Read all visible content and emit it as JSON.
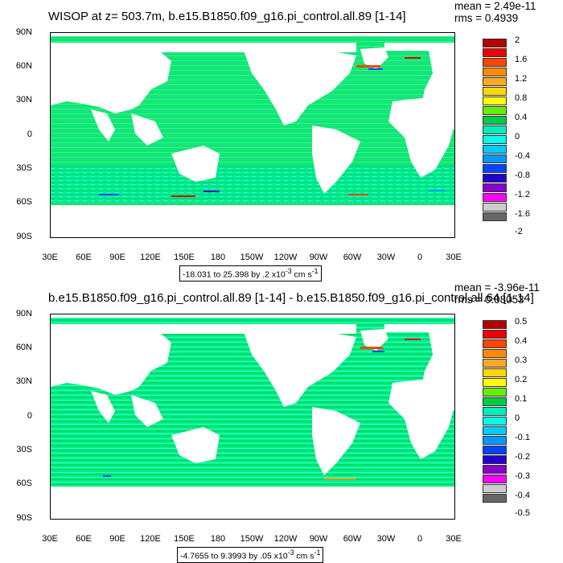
{
  "top": {
    "title": "WISOP at z= 503.7m, b.e15.B1850.f09_g16.pi_control.all.89 [1-14]",
    "mean": "mean = 2.49e-11",
    "rms": "rms = 0.4939",
    "range": "-18.031 to 25.398 by .2 x10",
    "range_exp": "-3",
    "range_unit": " cm s",
    "range_unit_exp": "-1",
    "colorbar_labels": [
      "2",
      "1.6",
      "1.2",
      "0.8",
      "0.4",
      "0",
      "-0.4",
      "-0.8",
      "-1.2",
      "-1.6",
      "-2"
    ]
  },
  "bottom": {
    "title": "b.e15.B1850.f09_g16.pi_control.all.89 [1-14] - b.e15.B1850.f09_g16.pi_control.all.64 [1-14]",
    "mean": "mean = -3.96e-11",
    "rms": "rms = 0.08053",
    "range": "-4.7655 to 9.3993 by .05 x10",
    "range_exp": "-3",
    "range_unit": " cm s",
    "range_unit_exp": "-1",
    "colorbar_labels": [
      "0.5",
      "0.4",
      "0.3",
      "0.2",
      "0.1",
      "0",
      "-0.1",
      "-0.2",
      "-0.3",
      "-0.4",
      "-0.5"
    ]
  },
  "lat_labels": [
    "90N",
    "60N",
    "30N",
    "0",
    "30S",
    "60S",
    "90S"
  ],
  "lon_labels": [
    "30E",
    "60E",
    "90E",
    "120E",
    "150E",
    "180",
    "150W",
    "120W",
    "90W",
    "60W",
    "30W",
    "0",
    "30E"
  ],
  "colorbar_colors": [
    "#b40000",
    "#ee0000",
    "#ff4500",
    "#ff8c00",
    "#ffaa22",
    "#ffd700",
    "#ffff00",
    "#66ee00",
    "#00cc44",
    "#00eebb",
    "#00ffee",
    "#00ccff",
    "#0099ff",
    "#0044ff",
    "#2200cc",
    "#8800cc",
    "#ff00ff",
    "#cccccc",
    "#666666"
  ]
}
